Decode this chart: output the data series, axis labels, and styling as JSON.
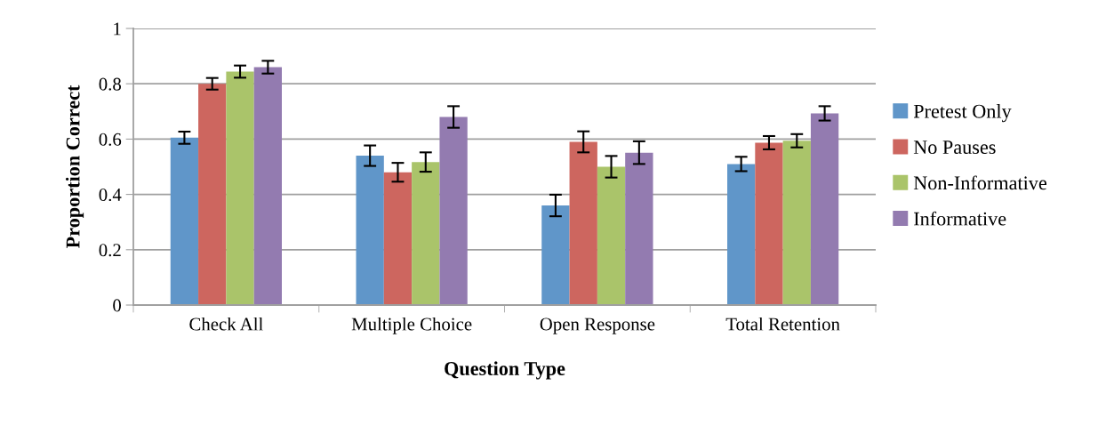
{
  "chart_data": {
    "type": "bar",
    "xlabel": "Question Type",
    "ylabel": "Proportion Correct",
    "categories": [
      "Check All",
      "Multiple Choice",
      "Open Response",
      "Total Retention"
    ],
    "series": [
      {
        "name": "Pretest Only",
        "color": "#6096c9",
        "values": [
          0.605,
          0.54,
          0.36,
          0.51
        ],
        "errors": [
          0.022,
          0.037,
          0.039,
          0.026
        ]
      },
      {
        "name": "No Pauses",
        "color": "#cd665f",
        "values": [
          0.8,
          0.48,
          0.59,
          0.587
        ],
        "errors": [
          0.021,
          0.034,
          0.038,
          0.024
        ]
      },
      {
        "name": "Non-Informative",
        "color": "#aac46a",
        "values": [
          0.844,
          0.517,
          0.5,
          0.594
        ],
        "errors": [
          0.022,
          0.035,
          0.039,
          0.024
        ]
      },
      {
        "name": "Informative",
        "color": "#937bb0",
        "values": [
          0.86,
          0.68,
          0.551,
          0.693
        ],
        "errors": [
          0.023,
          0.039,
          0.041,
          0.026
        ]
      }
    ],
    "ylim": [
      0,
      1
    ],
    "yticks": [
      0,
      0.2,
      0.4,
      0.6,
      0.8,
      1
    ],
    "grid": "y",
    "legend": "right"
  }
}
